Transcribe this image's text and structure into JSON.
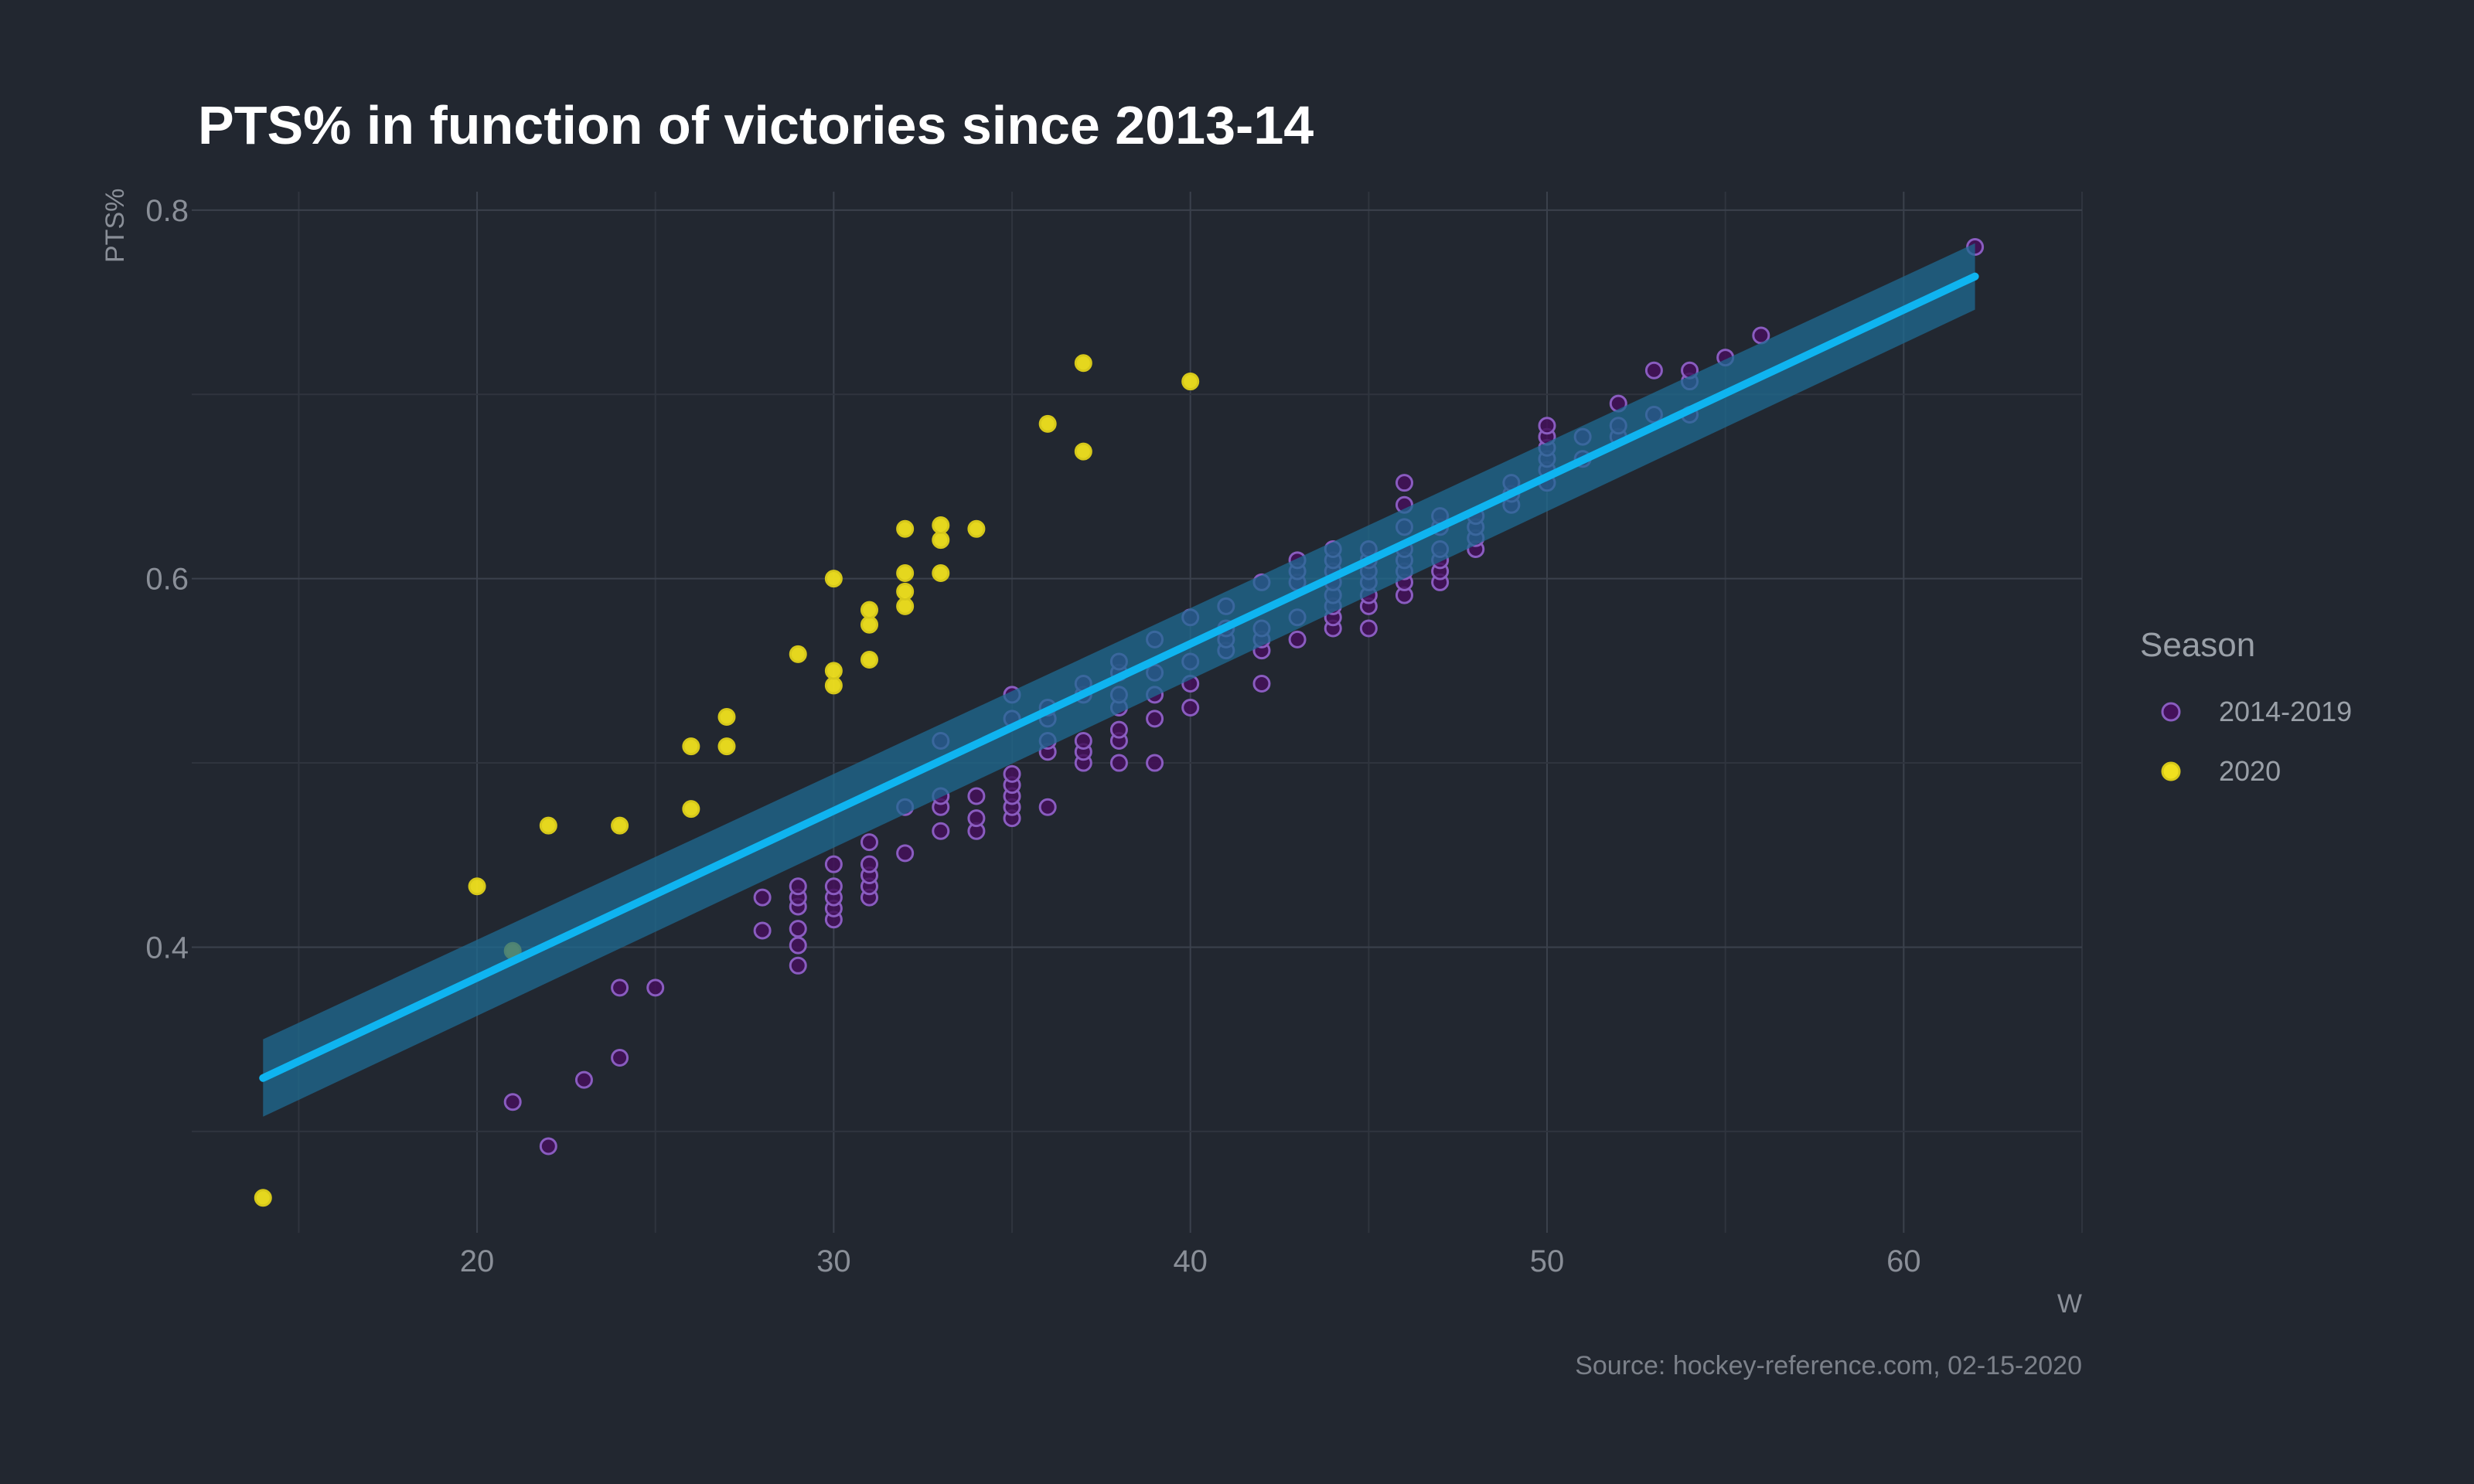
{
  "chart_data": {
    "type": "scatter",
    "title": "PTS% in function of victories since 2013-14",
    "xlabel": "W",
    "ylabel": "PTS%",
    "caption": "Source: hockey-reference.com, 02-15-2020",
    "xlim": [
      12,
      65
    ],
    "ylim": [
      0.245,
      0.81
    ],
    "x_ticks": [
      20,
      30,
      40,
      50,
      60
    ],
    "y_ticks": [
      0.4,
      0.6,
      0.8
    ],
    "x_tick_labels": [
      "20",
      "30",
      "40",
      "50",
      "60"
    ],
    "y_tick_labels": [
      "0.4",
      "0.6",
      "0.8"
    ],
    "grid": true,
    "legend": {
      "title": "Season",
      "position": "right"
    },
    "series": [
      {
        "name": "2014-2019",
        "color": "#44105a",
        "stroke": "#8a5cc0",
        "points": [
          [
            21,
            0.316
          ],
          [
            22,
            0.292
          ],
          [
            23,
            0.328
          ],
          [
            24,
            0.34
          ],
          [
            24,
            0.378
          ],
          [
            25,
            0.378
          ],
          [
            28,
            0.409
          ],
          [
            28,
            0.427
          ],
          [
            29,
            0.39
          ],
          [
            29,
            0.401
          ],
          [
            29,
            0.41
          ],
          [
            29,
            0.422
          ],
          [
            29,
            0.427
          ],
          [
            29,
            0.433
          ],
          [
            30,
            0.415
          ],
          [
            30,
            0.421
          ],
          [
            30,
            0.427
          ],
          [
            30,
            0.433
          ],
          [
            30,
            0.445
          ],
          [
            31,
            0.427
          ],
          [
            31,
            0.433
          ],
          [
            31,
            0.439
          ],
          [
            31,
            0.445
          ],
          [
            31,
            0.457
          ],
          [
            32,
            0.451
          ],
          [
            32,
            0.476
          ],
          [
            33,
            0.463
          ],
          [
            33,
            0.476
          ],
          [
            33,
            0.482
          ],
          [
            33,
            0.512
          ],
          [
            34,
            0.463
          ],
          [
            34,
            0.47
          ],
          [
            34,
            0.482
          ],
          [
            35,
            0.47
          ],
          [
            35,
            0.476
          ],
          [
            35,
            0.482
          ],
          [
            35,
            0.488
          ],
          [
            35,
            0.494
          ],
          [
            35,
            0.524
          ],
          [
            35,
            0.537
          ],
          [
            36,
            0.476
          ],
          [
            36,
            0.506
          ],
          [
            36,
            0.512
          ],
          [
            36,
            0.524
          ],
          [
            36,
            0.53
          ],
          [
            37,
            0.5
          ],
          [
            37,
            0.506
          ],
          [
            37,
            0.512
          ],
          [
            37,
            0.537
          ],
          [
            37,
            0.543
          ],
          [
            38,
            0.5
          ],
          [
            38,
            0.512
          ],
          [
            38,
            0.518
          ],
          [
            38,
            0.53
          ],
          [
            38,
            0.537
          ],
          [
            38,
            0.549
          ],
          [
            38,
            0.555
          ],
          [
            39,
            0.5
          ],
          [
            39,
            0.524
          ],
          [
            39,
            0.537
          ],
          [
            39,
            0.549
          ],
          [
            39,
            0.567
          ],
          [
            40,
            0.53
          ],
          [
            40,
            0.543
          ],
          [
            40,
            0.555
          ],
          [
            40,
            0.579
          ],
          [
            41,
            0.561
          ],
          [
            41,
            0.567
          ],
          [
            41,
            0.573
          ],
          [
            41,
            0.585
          ],
          [
            42,
            0.543
          ],
          [
            42,
            0.561
          ],
          [
            42,
            0.567
          ],
          [
            42,
            0.573
          ],
          [
            42,
            0.598
          ],
          [
            43,
            0.567
          ],
          [
            43,
            0.579
          ],
          [
            43,
            0.598
          ],
          [
            43,
            0.604
          ],
          [
            43,
            0.61
          ],
          [
            44,
            0.573
          ],
          [
            44,
            0.579
          ],
          [
            44,
            0.585
          ],
          [
            44,
            0.591
          ],
          [
            44,
            0.598
          ],
          [
            44,
            0.604
          ],
          [
            44,
            0.61
          ],
          [
            44,
            0.616
          ],
          [
            45,
            0.573
          ],
          [
            45,
            0.585
          ],
          [
            45,
            0.591
          ],
          [
            45,
            0.598
          ],
          [
            45,
            0.604
          ],
          [
            45,
            0.61
          ],
          [
            45,
            0.616
          ],
          [
            46,
            0.591
          ],
          [
            46,
            0.598
          ],
          [
            46,
            0.604
          ],
          [
            46,
            0.61
          ],
          [
            46,
            0.616
          ],
          [
            46,
            0.628
          ],
          [
            46,
            0.64
          ],
          [
            46,
            0.652
          ],
          [
            47,
            0.598
          ],
          [
            47,
            0.604
          ],
          [
            47,
            0.61
          ],
          [
            47,
            0.616
          ],
          [
            47,
            0.628
          ],
          [
            47,
            0.634
          ],
          [
            48,
            0.616
          ],
          [
            48,
            0.622
          ],
          [
            48,
            0.628
          ],
          [
            48,
            0.634
          ],
          [
            49,
            0.64
          ],
          [
            49,
            0.646
          ],
          [
            49,
            0.652
          ],
          [
            50,
            0.652
          ],
          [
            50,
            0.659
          ],
          [
            50,
            0.665
          ],
          [
            50,
            0.671
          ],
          [
            50,
            0.677
          ],
          [
            50,
            0.683
          ],
          [
            51,
            0.665
          ],
          [
            51,
            0.677
          ],
          [
            52,
            0.677
          ],
          [
            52,
            0.683
          ],
          [
            52,
            0.695
          ],
          [
            53,
            0.689
          ],
          [
            53,
            0.713
          ],
          [
            54,
            0.689
          ],
          [
            54,
            0.707
          ],
          [
            54,
            0.713
          ],
          [
            55,
            0.72
          ],
          [
            56,
            0.732
          ],
          [
            62,
            0.78
          ]
        ]
      },
      {
        "name": "2020",
        "color": "#f0e01e",
        "stroke": "#d6c81a",
        "points": [
          [
            14,
            0.264
          ],
          [
            20,
            0.433
          ],
          [
            21,
            0.398
          ],
          [
            22,
            0.466
          ],
          [
            24,
            0.466
          ],
          [
            26,
            0.475
          ],
          [
            26,
            0.509
          ],
          [
            27,
            0.509
          ],
          [
            27,
            0.525
          ],
          [
            29,
            0.559
          ],
          [
            30,
            0.542
          ],
          [
            30,
            0.55
          ],
          [
            30,
            0.6
          ],
          [
            31,
            0.556
          ],
          [
            31,
            0.575
          ],
          [
            31,
            0.583
          ],
          [
            32,
            0.585
          ],
          [
            32,
            0.593
          ],
          [
            32,
            0.603
          ],
          [
            32,
            0.627
          ],
          [
            33,
            0.603
          ],
          [
            33,
            0.621
          ],
          [
            33,
            0.629
          ],
          [
            34,
            0.627
          ],
          [
            36,
            0.684
          ],
          [
            37,
            0.669
          ],
          [
            37,
            0.717
          ],
          [
            40,
            0.707
          ]
        ]
      }
    ],
    "fit": {
      "type": "linear",
      "color": "#0fb4f0",
      "band_color": "#1f6b92",
      "x_range": [
        14,
        62
      ],
      "y_at_start": 0.329,
      "y_at_end": 0.764,
      "ci_at_start": [
        0.308,
        0.35
      ],
      "ci_at_end": [
        0.746,
        0.782
      ]
    }
  }
}
